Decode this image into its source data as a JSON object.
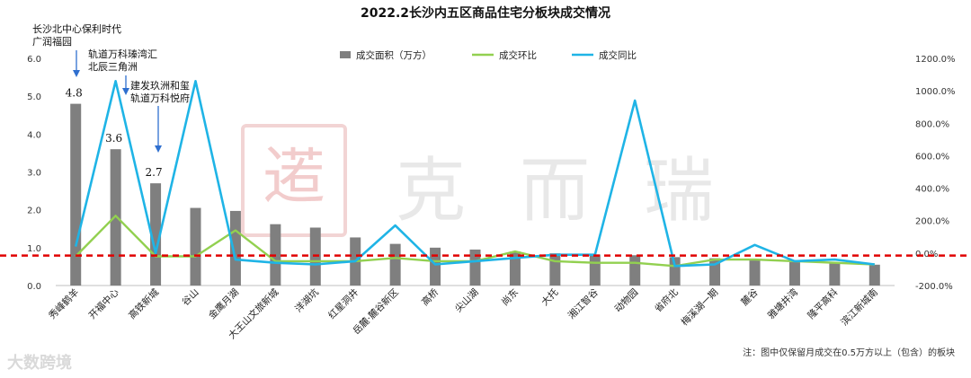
{
  "title": "2022.2长沙内五区商品住宅分板块成交情况",
  "note": "注：图中仅保留月成交在0.5万方以上（包含）的板块",
  "watermark_brand": "大数跨境",
  "watermark_logo": "克而瑞",
  "annotations": [
    {
      "text": "长沙北中心保利时代\n广润福园",
      "value_label": "4.8"
    },
    {
      "text": "轨道万科瑧湾汇\n北辰三角洲",
      "value_label": "3.6"
    },
    {
      "text": "建发玖洲和玺\n轨道万科悦府",
      "value_label": "2.7"
    }
  ],
  "colors": {
    "bar": "#7f7f7f",
    "mom": "#92d050",
    "yoy": "#1fb4e6",
    "ref": "#e00000"
  },
  "chart_data": {
    "type": "bar",
    "title": "2022.2长沙内五区商品住宅分板块成交情况",
    "categories": [
      "秀峰鹤羊",
      "开福中心",
      "高铁新城",
      "谷山",
      "金鹰月湖",
      "大王山文旅新城",
      "洋湖坑",
      "红星洞井",
      "岳麓·麓谷新区",
      "高桥",
      "尖山湖",
      "尚东",
      "大托",
      "湘江智谷",
      "动物园",
      "省府北",
      "梅溪湖一期",
      "麓谷",
      "雅塘井湾",
      "隆平高科",
      "滨江新城南"
    ],
    "series": [
      {
        "name": "成交面积（万方）",
        "axis": "left",
        "type": "bar",
        "values": [
          4.8,
          3.6,
          2.7,
          2.05,
          1.97,
          1.62,
          1.53,
          1.27,
          1.1,
          1.0,
          0.95,
          0.9,
          0.85,
          0.82,
          0.8,
          0.75,
          0.72,
          0.68,
          0.62,
          0.58,
          0.55
        ]
      },
      {
        "name": "成交环比",
        "axis": "right",
        "type": "line",
        "values": [
          -20,
          230,
          -20,
          -20,
          140,
          -50,
          -50,
          -50,
          -30,
          -50,
          -50,
          10,
          -50,
          -60,
          -60,
          -80,
          -40,
          -40,
          -50,
          -60,
          -70
        ]
      },
      {
        "name": "成交同比",
        "axis": "right",
        "type": "line",
        "values": [
          40,
          1060,
          0,
          1060,
          -40,
          -60,
          -70,
          -50,
          170,
          -70,
          -50,
          -30,
          -10,
          -10,
          940,
          -80,
          -70,
          50,
          -50,
          -40,
          -70
        ]
      }
    ],
    "left_axis": {
      "ylim": [
        0,
        6
      ],
      "ticks": [
        "0.0",
        "1.0",
        "2.0",
        "3.0",
        "4.0",
        "5.0",
        "6.0"
      ]
    },
    "right_axis": {
      "ylim": [
        -200,
        1200
      ],
      "ticks": [
        "-200.0%",
        "0.0%",
        "200.0%",
        "400.0%",
        "600.0%",
        "800.0%",
        "1000.0%",
        "1200.0%"
      ]
    },
    "reference_line": {
      "axis": "right",
      "value": -15,
      "style": "dashed"
    },
    "legend": {
      "placement": "top-center",
      "items": [
        "成交面积（万方）",
        "成交环比",
        "成交同比"
      ]
    }
  }
}
